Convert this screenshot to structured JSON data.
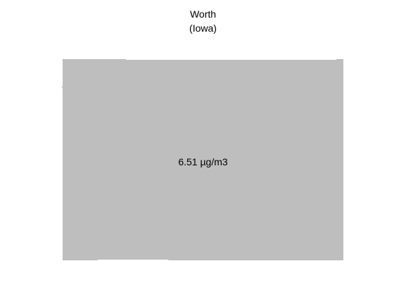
{
  "map": {
    "county_name": "Worth",
    "state_label": "(Iowa)",
    "value_label": "6.51 µg/m3",
    "value": 6.51,
    "unit": "µg/m3",
    "fill_color": "#bebebe",
    "background_color": "#ffffff"
  }
}
